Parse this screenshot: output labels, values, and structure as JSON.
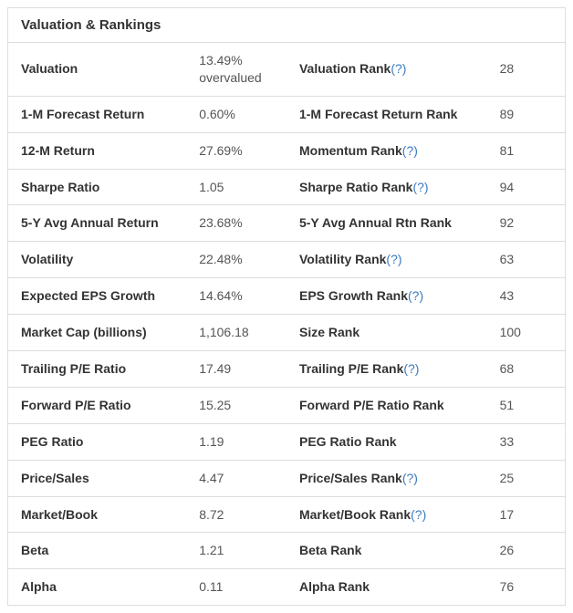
{
  "card": {
    "title": "Valuation & Rankings",
    "help_link_text": "(?)",
    "colors": {
      "border": "#dddddd",
      "text_primary": "#333333",
      "text_secondary": "#555555",
      "link": "#3b7bbf",
      "background": "#ffffff"
    },
    "column_widths_pct": {
      "metric": 32,
      "value": 18,
      "rank_label": 36,
      "rank_value": 14
    },
    "font_sizes_pt": {
      "header": 15,
      "cell": 14
    },
    "rows": [
      {
        "metric": "Valuation",
        "value": "13.49% overvalued",
        "rank_label": "Valuation Rank",
        "has_help": true,
        "rank_value": "28"
      },
      {
        "metric": "1-M Forecast Return",
        "value": "0.60%",
        "rank_label": "1-M Forecast Return Rank",
        "has_help": false,
        "rank_value": "89"
      },
      {
        "metric": "12-M Return",
        "value": "27.69%",
        "rank_label": "Momentum Rank",
        "has_help": true,
        "rank_value": "81"
      },
      {
        "metric": "Sharpe Ratio",
        "value": "1.05",
        "rank_label": "Sharpe Ratio Rank",
        "has_help": true,
        "rank_value": "94"
      },
      {
        "metric": "5-Y Avg Annual Return",
        "value": "23.68%",
        "rank_label": "5-Y Avg Annual Rtn Rank",
        "has_help": false,
        "rank_value": "92"
      },
      {
        "metric": "Volatility",
        "value": "22.48%",
        "rank_label": "Volatility Rank",
        "has_help": true,
        "rank_value": "63"
      },
      {
        "metric": "Expected EPS Growth",
        "value": "14.64%",
        "rank_label": "EPS Growth Rank",
        "has_help": true,
        "rank_value": "43"
      },
      {
        "metric": "Market Cap (billions)",
        "value": "1,106.18",
        "rank_label": "Size Rank",
        "has_help": false,
        "rank_value": "100"
      },
      {
        "metric": "Trailing P/E Ratio",
        "value": "17.49",
        "rank_label": "Trailing P/E Rank",
        "has_help": true,
        "rank_value": "68"
      },
      {
        "metric": "Forward P/E Ratio",
        "value": "15.25",
        "rank_label": "Forward P/E Ratio Rank",
        "has_help": false,
        "rank_value": "51"
      },
      {
        "metric": "PEG Ratio",
        "value": "1.19",
        "rank_label": "PEG Ratio Rank",
        "has_help": false,
        "rank_value": "33"
      },
      {
        "metric": "Price/Sales",
        "value": "4.47",
        "rank_label": "Price/Sales Rank",
        "has_help": true,
        "rank_value": "25"
      },
      {
        "metric": "Market/Book",
        "value": "8.72",
        "rank_label": "Market/Book Rank",
        "has_help": true,
        "rank_value": "17"
      },
      {
        "metric": "Beta",
        "value": "1.21",
        "rank_label": "Beta Rank",
        "has_help": false,
        "rank_value": "26"
      },
      {
        "metric": "Alpha",
        "value": "0.11",
        "rank_label": "Alpha Rank",
        "has_help": false,
        "rank_value": "76"
      }
    ]
  }
}
